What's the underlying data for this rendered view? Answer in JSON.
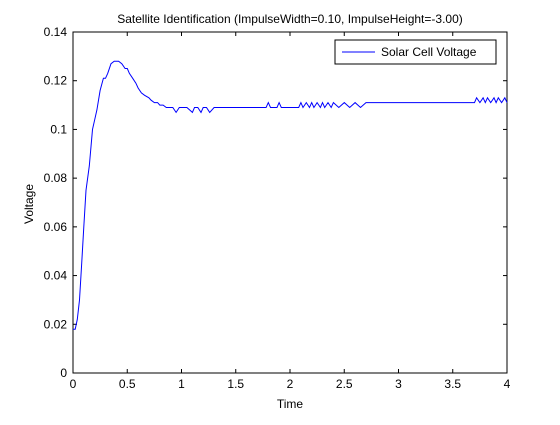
{
  "chart_data": {
    "type": "line",
    "title": "Satellite Identification (ImpulseWidth=0.10, ImpulseHeight=-3.00)",
    "xlabel": "Time",
    "ylabel": "Voltage",
    "xlim": [
      0,
      4
    ],
    "ylim": [
      0,
      0.14
    ],
    "xticks": [
      0,
      0.5,
      1,
      1.5,
      2,
      2.5,
      3,
      3.5,
      4
    ],
    "xtick_labels": [
      "0",
      "0.5",
      "1",
      "1.5",
      "2",
      "2.5",
      "3",
      "3.5",
      "4"
    ],
    "yticks": [
      0,
      0.02,
      0.04,
      0.06,
      0.08,
      0.1,
      0.12,
      0.14
    ],
    "ytick_labels": [
      "0",
      "0.02",
      "0.04",
      "0.06",
      "0.08",
      "0.1",
      "0.12",
      "0.14"
    ],
    "grid": false,
    "legend_position": "top-right",
    "series": [
      {
        "name": "Solar Cell Voltage",
        "color": "#0000ff",
        "x": [
          0,
          0.02,
          0.04,
          0.06,
          0.08,
          0.1,
          0.12,
          0.15,
          0.18,
          0.2,
          0.22,
          0.25,
          0.28,
          0.3,
          0.32,
          0.35,
          0.38,
          0.4,
          0.42,
          0.45,
          0.48,
          0.5,
          0.52,
          0.55,
          0.58,
          0.6,
          0.63,
          0.66,
          0.7,
          0.72,
          0.75,
          0.78,
          0.8,
          0.83,
          0.86,
          0.9,
          0.92,
          0.95,
          0.98,
          1.0,
          1.05,
          1.1,
          1.12,
          1.15,
          1.18,
          1.2,
          1.23,
          1.26,
          1.3,
          1.32,
          1.4,
          1.6,
          1.78,
          1.8,
          1.82,
          1.88,
          1.9,
          1.92,
          2.0,
          2.08,
          2.1,
          2.12,
          2.15,
          2.18,
          2.2,
          2.22,
          2.25,
          2.28,
          2.3,
          2.32,
          2.35,
          2.38,
          2.4,
          2.45,
          2.5,
          2.55,
          2.6,
          2.65,
          2.7,
          3.0,
          3.5,
          3.7,
          3.72,
          3.75,
          3.78,
          3.8,
          3.82,
          3.85,
          3.88,
          3.9,
          3.92,
          3.95,
          3.98,
          4.0
        ],
        "y": [
          0.018,
          0.018,
          0.022,
          0.03,
          0.045,
          0.06,
          0.075,
          0.085,
          0.1,
          0.104,
          0.108,
          0.116,
          0.121,
          0.121,
          0.123,
          0.127,
          0.128,
          0.128,
          0.128,
          0.127,
          0.125,
          0.125,
          0.123,
          0.121,
          0.119,
          0.117,
          0.115,
          0.114,
          0.113,
          0.112,
          0.111,
          0.111,
          0.11,
          0.11,
          0.109,
          0.109,
          0.109,
          0.107,
          0.109,
          0.109,
          0.109,
          0.107,
          0.109,
          0.109,
          0.107,
          0.109,
          0.109,
          0.107,
          0.109,
          0.109,
          0.109,
          0.109,
          0.109,
          0.111,
          0.109,
          0.109,
          0.111,
          0.109,
          0.109,
          0.109,
          0.111,
          0.109,
          0.111,
          0.109,
          0.111,
          0.109,
          0.111,
          0.109,
          0.111,
          0.109,
          0.111,
          0.109,
          0.111,
          0.109,
          0.111,
          0.109,
          0.111,
          0.109,
          0.111,
          0.111,
          0.111,
          0.111,
          0.113,
          0.111,
          0.113,
          0.111,
          0.113,
          0.111,
          0.113,
          0.111,
          0.113,
          0.111,
          0.113,
          0.111
        ]
      }
    ]
  }
}
